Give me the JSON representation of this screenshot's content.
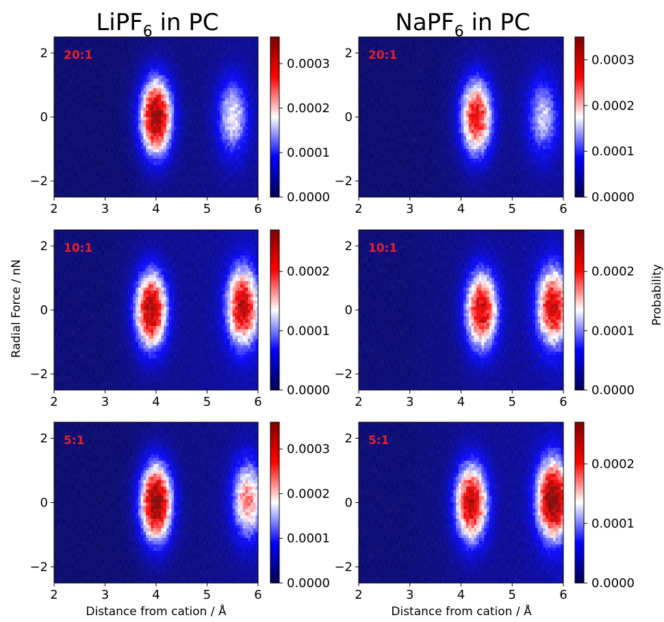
{
  "titles": {
    "left": {
      "base": "LiPF",
      "sub": "6",
      "rest": " in PC"
    },
    "right": {
      "base": "NaPF",
      "sub": "6",
      "rest": " in PC"
    }
  },
  "axes": {
    "ylabel": "Radial Force / nN",
    "xlabel": "Distance from cation / Å",
    "colorbar_label": "Probability"
  },
  "colors": {
    "colormap": [
      "#000050",
      "#0000ff",
      "#ffffff",
      "#ff0000",
      "#800000"
    ],
    "tag_color": "#e8202a"
  },
  "chart_data": [
    {
      "type": "heatmap",
      "salt": "LiPF6",
      "concentration": "20:1",
      "xlim": [
        2,
        6
      ],
      "ylim": [
        -2.5,
        2.5
      ],
      "xticks": [
        2,
        3,
        4,
        5,
        6
      ],
      "yticks": [
        -2,
        0,
        2
      ],
      "colorbar": {
        "ticks": [
          0,
          0.0001,
          0.0002,
          0.0003
        ],
        "labels": [
          "0.0000",
          "0.0001",
          "0.0002",
          "0.0003"
        ],
        "vmax": 0.00036
      },
      "peaks": [
        {
          "x": 4.0,
          "y": 0.0,
          "value": 0.00033
        },
        {
          "x": 5.5,
          "y": 0.0,
          "value": 0.00015
        }
      ]
    },
    {
      "type": "heatmap",
      "salt": "NaPF6",
      "concentration": "20:1",
      "xlim": [
        2,
        6
      ],
      "ylim": [
        -2.5,
        2.5
      ],
      "xticks": [
        2,
        3,
        4,
        5,
        6
      ],
      "yticks": [
        -2,
        0,
        2
      ],
      "colorbar": {
        "ticks": [
          0,
          0.0001,
          0.0002,
          0.0003
        ],
        "labels": [
          "0.0000",
          "0.0001",
          "0.0002",
          "0.0003"
        ],
        "vmax": 0.00035
      },
      "peaks": [
        {
          "x": 4.3,
          "y": 0.0,
          "value": 0.00026
        },
        {
          "x": 5.6,
          "y": 0.0,
          "value": 0.00013
        }
      ]
    },
    {
      "type": "heatmap",
      "salt": "LiPF6",
      "concentration": "10:1",
      "xlim": [
        2,
        6
      ],
      "ylim": [
        -2.5,
        2.5
      ],
      "xticks": [
        2,
        3,
        4,
        5,
        6
      ],
      "yticks": [
        -2,
        0,
        2
      ],
      "colorbar": {
        "ticks": [
          0,
          0.0001,
          0.0002
        ],
        "labels": [
          "0.0000",
          "0.0001",
          "0.0002"
        ],
        "vmax": 0.00027
      },
      "peaks": [
        {
          "x": 3.9,
          "y": 0.0,
          "value": 0.00023
        },
        {
          "x": 5.7,
          "y": 0.1,
          "value": 0.00021
        }
      ]
    },
    {
      "type": "heatmap",
      "salt": "NaPF6",
      "concentration": "10:1",
      "xlim": [
        2,
        6
      ],
      "ylim": [
        -2.5,
        2.5
      ],
      "xticks": [
        2,
        3,
        4,
        5,
        6
      ],
      "yticks": [
        -2,
        0,
        2
      ],
      "colorbar": {
        "ticks": [
          0,
          0.0001,
          0.0002
        ],
        "labels": [
          "0.0000",
          "0.0001",
          "0.0002"
        ],
        "vmax": 0.00027
      },
      "peaks": [
        {
          "x": 4.4,
          "y": 0.0,
          "value": 0.00021
        },
        {
          "x": 5.8,
          "y": 0.1,
          "value": 0.0002
        }
      ]
    },
    {
      "type": "heatmap",
      "salt": "LiPF6",
      "concentration": "5:1",
      "xlim": [
        2,
        6
      ],
      "ylim": [
        -2.5,
        2.5
      ],
      "xticks": [
        2,
        3,
        4,
        5,
        6
      ],
      "yticks": [
        -2,
        0,
        2
      ],
      "colorbar": {
        "ticks": [
          0,
          0.0001,
          0.0002,
          0.0003
        ],
        "labels": [
          "0.0000",
          "0.0001",
          "0.0002",
          "0.0003"
        ],
        "vmax": 0.00036
      },
      "peaks": [
        {
          "x": 4.0,
          "y": 0.0,
          "value": 0.00034
        },
        {
          "x": 5.8,
          "y": 0.1,
          "value": 0.0002
        }
      ]
    },
    {
      "type": "heatmap",
      "salt": "NaPF6",
      "concentration": "5:1",
      "xlim": [
        2,
        6
      ],
      "ylim": [
        -2.5,
        2.5
      ],
      "xticks": [
        2,
        3,
        4,
        5,
        6
      ],
      "yticks": [
        -2,
        0,
        2
      ],
      "colorbar": {
        "ticks": [
          0,
          0.0001,
          0.0002
        ],
        "labels": [
          "0.0000",
          "0.0001",
          "0.0002"
        ],
        "vmax": 0.00027
      },
      "peaks": [
        {
          "x": 4.2,
          "y": 0.0,
          "value": 0.00022
        },
        {
          "x": 5.8,
          "y": 0.1,
          "value": 0.00025
        }
      ]
    }
  ]
}
